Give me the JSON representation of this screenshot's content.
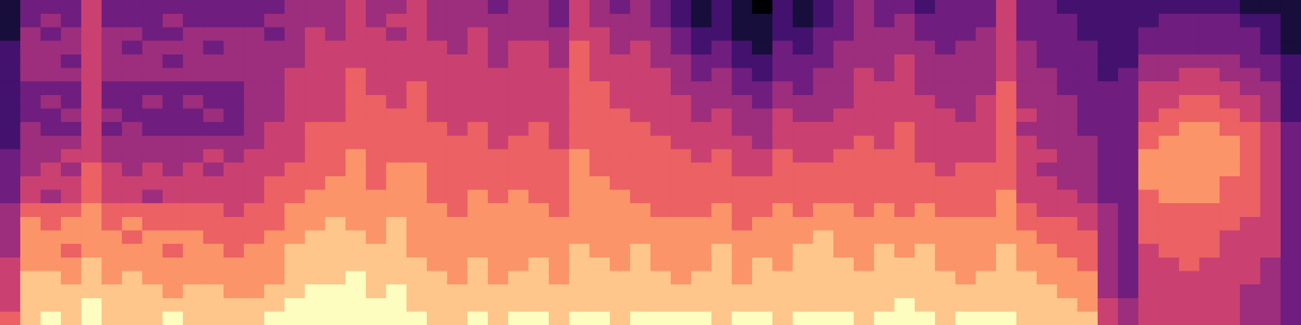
{
  "chart_data": {
    "type": "heatmap",
    "tick_labels": false,
    "grid": false,
    "zlim": [
      0,
      9
    ],
    "cells": [
      [
        1,
        3,
        3,
        3,
        5,
        3,
        3,
        3,
        3,
        3,
        3,
        3,
        3,
        3,
        4,
        4,
        4,
        5,
        4,
        4,
        5,
        4,
        4,
        4,
        3,
        4,
        4,
        3,
        5,
        4,
        3,
        4,
        3,
        2,
        1,
        2,
        1,
        0,
        2,
        1,
        2,
        3,
        4,
        3,
        3,
        2,
        3,
        3,
        3,
        5,
        3,
        3,
        2,
        2,
        2,
        2,
        2,
        2,
        2,
        2,
        2,
        1,
        1,
        1
      ],
      [
        1,
        3,
        4,
        3,
        5,
        3,
        3,
        3,
        4,
        3,
        3,
        3,
        3,
        4,
        4,
        4,
        4,
        5,
        4,
        5,
        5,
        4,
        4,
        4,
        4,
        4,
        4,
        3,
        5,
        4,
        4,
        4,
        3,
        2,
        1,
        2,
        1,
        1,
        2,
        1,
        2,
        3,
        4,
        3,
        4,
        3,
        3,
        3,
        3,
        5,
        3,
        3,
        3,
        2,
        2,
        2,
        2,
        3,
        3,
        3,
        3,
        2,
        2,
        1
      ],
      [
        1,
        4,
        3,
        4,
        5,
        4,
        4,
        3,
        3,
        4,
        4,
        4,
        4,
        3,
        4,
        5,
        4,
        5,
        5,
        4,
        5,
        4,
        4,
        5,
        4,
        4,
        4,
        4,
        5,
        5,
        4,
        4,
        4,
        3,
        2,
        2,
        1,
        1,
        2,
        2,
        3,
        3,
        4,
        4,
        4,
        3,
        3,
        3,
        4,
        5,
        3,
        3,
        3,
        2,
        2,
        2,
        3,
        3,
        3,
        3,
        3,
        3,
        2,
        1
      ],
      [
        2,
        4,
        4,
        4,
        5,
        4,
        3,
        4,
        4,
        4,
        3,
        4,
        4,
        4,
        4,
        5,
        5,
        5,
        5,
        5,
        5,
        5,
        4,
        5,
        4,
        5,
        5,
        4,
        6,
        5,
        4,
        5,
        4,
        3,
        2,
        3,
        2,
        1,
        3,
        2,
        3,
        4,
        4,
        4,
        4,
        4,
        3,
        4,
        4,
        5,
        4,
        3,
        3,
        3,
        2,
        2,
        3,
        3,
        3,
        3,
        3,
        3,
        2,
        1
      ],
      [
        2,
        4,
        4,
        3,
        5,
        4,
        4,
        4,
        3,
        4,
        4,
        4,
        4,
        4,
        4,
        5,
        5,
        5,
        5,
        5,
        5,
        5,
        5,
        5,
        4,
        5,
        5,
        4,
        6,
        5,
        5,
        5,
        4,
        4,
        3,
        3,
        2,
        2,
        3,
        3,
        3,
        4,
        4,
        4,
        5,
        4,
        4,
        4,
        4,
        5,
        4,
        3,
        3,
        3,
        2,
        2,
        4,
        4,
        4,
        4,
        4,
        3,
        3,
        2
      ],
      [
        2,
        4,
        4,
        4,
        5,
        4,
        4,
        4,
        4,
        4,
        4,
        4,
        4,
        4,
        5,
        5,
        5,
        6,
        5,
        5,
        5,
        5,
        5,
        5,
        5,
        5,
        5,
        5,
        6,
        5,
        5,
        5,
        5,
        4,
        3,
        4,
        3,
        2,
        3,
        3,
        4,
        4,
        5,
        4,
        5,
        4,
        4,
        4,
        4,
        5,
        4,
        4,
        3,
        3,
        2,
        3,
        4,
        4,
        5,
        5,
        4,
        4,
        3,
        2
      ],
      [
        2,
        3,
        3,
        3,
        5,
        3,
        3,
        3,
        3,
        3,
        3,
        3,
        4,
        4,
        5,
        5,
        5,
        6,
        5,
        5,
        6,
        5,
        5,
        5,
        5,
        5,
        5,
        5,
        6,
        6,
        5,
        5,
        5,
        4,
        4,
        4,
        3,
        3,
        4,
        3,
        4,
        4,
        5,
        5,
        5,
        4,
        4,
        4,
        4,
        6,
        4,
        4,
        3,
        3,
        3,
        3,
        5,
        5,
        5,
        5,
        5,
        4,
        4,
        2
      ],
      [
        2,
        3,
        4,
        3,
        5,
        3,
        3,
        4,
        3,
        4,
        3,
        3,
        4,
        4,
        5,
        5,
        5,
        6,
        6,
        5,
        6,
        5,
        5,
        5,
        5,
        5,
        5,
        5,
        6,
        6,
        5,
        5,
        5,
        5,
        4,
        4,
        4,
        3,
        4,
        4,
        4,
        4,
        5,
        5,
        5,
        5,
        4,
        4,
        5,
        6,
        4,
        4,
        4,
        3,
        3,
        3,
        5,
        5,
        6,
        6,
        5,
        5,
        4,
        2
      ],
      [
        2,
        3,
        3,
        4,
        5,
        4,
        3,
        3,
        3,
        3,
        4,
        3,
        4,
        4,
        5,
        5,
        5,
        6,
        6,
        6,
        6,
        5,
        5,
        5,
        5,
        5,
        5,
        5,
        6,
        6,
        6,
        5,
        5,
        5,
        4,
        5,
        4,
        4,
        5,
        4,
        4,
        5,
        5,
        5,
        5,
        5,
        5,
        4,
        5,
        6,
        5,
        4,
        4,
        3,
        3,
        3,
        5,
        6,
        6,
        6,
        6,
        5,
        4,
        2
      ],
      [
        2,
        4,
        3,
        3,
        5,
        3,
        4,
        3,
        3,
        3,
        3,
        3,
        4,
        5,
        5,
        6,
        6,
        6,
        6,
        6,
        6,
        6,
        5,
        6,
        5,
        5,
        6,
        5,
        6,
        6,
        6,
        6,
        5,
        5,
        5,
        5,
        4,
        4,
        5,
        5,
        5,
        5,
        5,
        5,
        6,
        5,
        5,
        5,
        5,
        6,
        4,
        4,
        4,
        3,
        3,
        3,
        6,
        6,
        7,
        7,
        6,
        6,
        5,
        3
      ],
      [
        2,
        4,
        4,
        4,
        5,
        4,
        4,
        4,
        4,
        4,
        4,
        4,
        4,
        5,
        5,
        6,
        6,
        6,
        6,
        6,
        6,
        6,
        6,
        6,
        5,
        6,
        6,
        5,
        6,
        6,
        6,
        6,
        6,
        5,
        5,
        5,
        5,
        4,
        5,
        5,
        5,
        5,
        6,
        5,
        6,
        5,
        5,
        5,
        5,
        6,
        5,
        4,
        4,
        4,
        3,
        3,
        6,
        7,
        7,
        7,
        7,
        6,
        5,
        3
      ],
      [
        3,
        4,
        4,
        5,
        5,
        4,
        4,
        4,
        4,
        4,
        5,
        4,
        5,
        5,
        5,
        6,
        6,
        7,
        6,
        6,
        6,
        6,
        6,
        6,
        6,
        6,
        6,
        6,
        7,
        6,
        6,
        6,
        6,
        6,
        5,
        6,
        5,
        5,
        6,
        5,
        5,
        6,
        6,
        6,
        6,
        5,
        5,
        5,
        5,
        6,
        5,
        5,
        4,
        4,
        3,
        3,
        7,
        7,
        7,
        7,
        7,
        6,
        5,
        3
      ],
      [
        3,
        4,
        5,
        4,
        6,
        5,
        4,
        5,
        4,
        5,
        4,
        5,
        5,
        5,
        6,
        6,
        6,
        7,
        6,
        7,
        7,
        6,
        6,
        6,
        6,
        6,
        6,
        6,
        7,
        6,
        6,
        6,
        6,
        6,
        6,
        6,
        5,
        5,
        6,
        6,
        6,
        6,
        6,
        6,
        6,
        6,
        5,
        6,
        6,
        6,
        5,
        4,
        4,
        4,
        3,
        3,
        7,
        7,
        7,
        7,
        7,
        6,
        5,
        3
      ],
      [
        3,
        5,
        5,
        5,
        6,
        5,
        5,
        5,
        5,
        5,
        5,
        5,
        5,
        6,
        6,
        6,
        7,
        7,
        6,
        7,
        7,
        6,
        6,
        6,
        6,
        6,
        6,
        6,
        7,
        7,
        6,
        6,
        6,
        6,
        6,
        6,
        6,
        6,
        6,
        6,
        6,
        6,
        6,
        6,
        6,
        6,
        6,
        6,
        6,
        6,
        5,
        5,
        4,
        4,
        3,
        3,
        7,
        7,
        7,
        7,
        6,
        6,
        5,
        3
      ],
      [
        3,
        5,
        4,
        5,
        6,
        5,
        5,
        4,
        5,
        5,
        5,
        5,
        5,
        6,
        6,
        7,
        7,
        7,
        7,
        7,
        7,
        6,
        6,
        7,
        6,
        7,
        6,
        6,
        7,
        7,
        7,
        6,
        6,
        6,
        6,
        6,
        6,
        6,
        6,
        6,
        6,
        6,
        6,
        6,
        6,
        6,
        6,
        6,
        6,
        7,
        5,
        5,
        5,
        4,
        3,
        3,
        6,
        7,
        7,
        7,
        6,
        6,
        5,
        3
      ],
      [
        4,
        6,
        6,
        6,
        7,
        6,
        6,
        6,
        6,
        6,
        6,
        5,
        6,
        6,
        7,
        7,
        7,
        7,
        7,
        7,
        7,
        7,
        6,
        7,
        7,
        7,
        7,
        6,
        7,
        7,
        7,
        7,
        6,
        6,
        6,
        7,
        6,
        6,
        7,
        6,
        7,
        7,
        6,
        7,
        6,
        7,
        6,
        6,
        6,
        7,
        6,
        5,
        5,
        5,
        4,
        3,
        6,
        6,
        6,
        6,
        6,
        6,
        5,
        3
      ],
      [
        4,
        7,
        6,
        7,
        7,
        6,
        7,
        6,
        6,
        6,
        6,
        6,
        6,
        6,
        7,
        7,
        8,
        7,
        7,
        8,
        7,
        7,
        7,
        7,
        7,
        7,
        7,
        7,
        7,
        7,
        7,
        7,
        7,
        7,
        7,
        7,
        6,
        7,
        7,
        7,
        7,
        7,
        7,
        7,
        7,
        7,
        7,
        7,
        7,
        7,
        6,
        6,
        6,
        5,
        4,
        3,
        6,
        6,
        6,
        6,
        6,
        5,
        5,
        3
      ],
      [
        4,
        7,
        7,
        7,
        7,
        7,
        6,
        7,
        7,
        7,
        6,
        6,
        6,
        7,
        7,
        8,
        8,
        8,
        7,
        8,
        7,
        7,
        7,
        7,
        7,
        7,
        7,
        7,
        7,
        7,
        7,
        7,
        7,
        7,
        7,
        7,
        7,
        7,
        7,
        7,
        8,
        7,
        7,
        7,
        7,
        7,
        7,
        7,
        7,
        7,
        7,
        6,
        6,
        6,
        4,
        3,
        6,
        6,
        6,
        6,
        5,
        5,
        5,
        3
      ],
      [
        4,
        7,
        7,
        6,
        7,
        7,
        7,
        7,
        6,
        7,
        7,
        6,
        7,
        7,
        8,
        8,
        8,
        8,
        8,
        8,
        7,
        7,
        7,
        7,
        7,
        7,
        7,
        7,
        8,
        7,
        7,
        8,
        7,
        7,
        7,
        8,
        7,
        7,
        7,
        8,
        8,
        7,
        7,
        8,
        7,
        8,
        7,
        7,
        7,
        8,
        7,
        7,
        6,
        6,
        4,
        3,
        5,
        6,
        6,
        6,
        5,
        5,
        5,
        3
      ],
      [
        5,
        7,
        7,
        7,
        8,
        7,
        7,
        7,
        7,
        7,
        7,
        7,
        7,
        7,
        8,
        8,
        8,
        8,
        8,
        8,
        8,
        7,
        7,
        8,
        7,
        7,
        8,
        7,
        8,
        8,
        7,
        8,
        7,
        7,
        7,
        8,
        7,
        8,
        7,
        8,
        8,
        8,
        7,
        8,
        8,
        8,
        7,
        7,
        7,
        8,
        7,
        7,
        7,
        6,
        4,
        3,
        5,
        5,
        6,
        5,
        5,
        5,
        4,
        3
      ],
      [
        5,
        8,
        8,
        7,
        8,
        7,
        8,
        7,
        7,
        7,
        7,
        7,
        7,
        7,
        8,
        8,
        8,
        9,
        8,
        8,
        8,
        8,
        7,
        8,
        7,
        8,
        8,
        7,
        8,
        8,
        8,
        8,
        8,
        7,
        8,
        8,
        7,
        8,
        8,
        8,
        8,
        8,
        8,
        8,
        8,
        8,
        8,
        7,
        8,
        8,
        8,
        7,
        7,
        7,
        4,
        3,
        5,
        5,
        5,
        5,
        5,
        5,
        4,
        3
      ],
      [
        5,
        8,
        8,
        8,
        8,
        8,
        8,
        8,
        7,
        8,
        8,
        7,
        7,
        8,
        8,
        9,
        9,
        9,
        8,
        9,
        8,
        8,
        8,
        8,
        8,
        8,
        8,
        8,
        8,
        8,
        8,
        8,
        8,
        8,
        8,
        8,
        8,
        8,
        8,
        8,
        8,
        8,
        8,
        8,
        8,
        8,
        8,
        8,
        8,
        8,
        8,
        8,
        7,
        7,
        4,
        3,
        5,
        5,
        5,
        5,
        5,
        4,
        4,
        3
      ],
      [
        5,
        8,
        8,
        8,
        9,
        8,
        8,
        8,
        8,
        8,
        8,
        8,
        8,
        8,
        9,
        9,
        9,
        9,
        9,
        9,
        8,
        8,
        8,
        8,
        8,
        8,
        8,
        8,
        8,
        8,
        8,
        8,
        8,
        8,
        8,
        8,
        8,
        8,
        8,
        8,
        8,
        8,
        8,
        8,
        9,
        8,
        8,
        8,
        8,
        8,
        8,
        8,
        8,
        7,
        5,
        4,
        5,
        5,
        5,
        5,
        5,
        4,
        4,
        3
      ],
      [
        6,
        8,
        9,
        8,
        9,
        8,
        8,
        8,
        9,
        8,
        8,
        8,
        8,
        9,
        9,
        9,
        9,
        9,
        9,
        9,
        9,
        8,
        8,
        9,
        8,
        9,
        9,
        8,
        9,
        9,
        8,
        9,
        9,
        9,
        9,
        8,
        9,
        9,
        8,
        9,
        9,
        9,
        8,
        9,
        9,
        9,
        8,
        9,
        9,
        9,
        8,
        8,
        8,
        8,
        5,
        4,
        5,
        5,
        5,
        5,
        5,
        4,
        4,
        3
      ]
    ]
  }
}
